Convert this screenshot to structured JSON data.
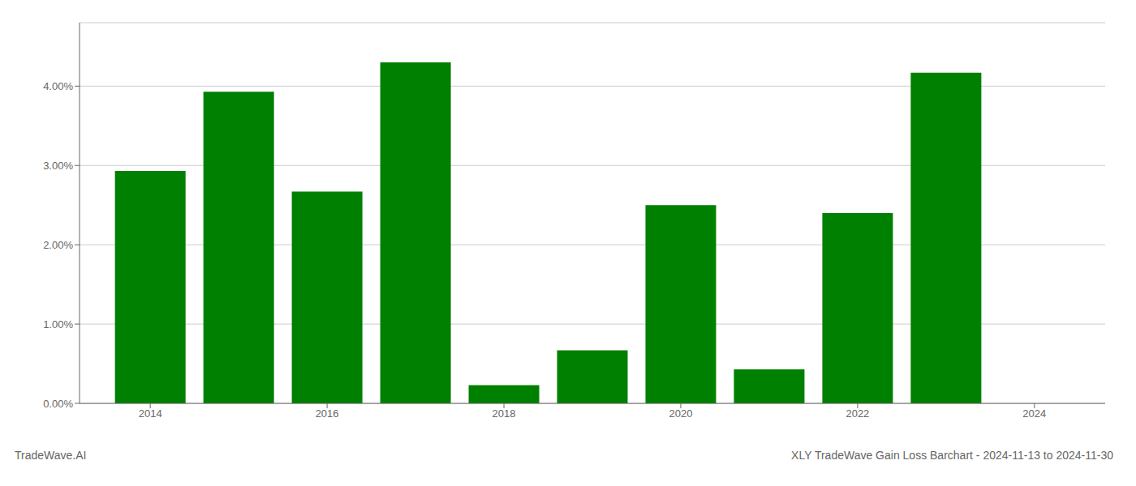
{
  "chart_data": {
    "type": "bar",
    "title": "XLY TradeWave Gain Loss Barchart - 2024-11-13 to 2024-11-30",
    "annotations": [
      "TradeWave.AI"
    ],
    "x": [
      2014,
      2015,
      2016,
      2017,
      2018,
      2019,
      2020,
      2021,
      2022,
      2023,
      2024
    ],
    "values": [
      0.0293,
      0.0393,
      0.0267,
      0.043,
      0.0023,
      0.0067,
      0.025,
      0.0043,
      0.024,
      0.0417,
      0.0
    ],
    "color": "#008000",
    "xlim": [
      2013.2,
      2024.8
    ],
    "xticks": [
      2014,
      2016,
      2018,
      2020,
      2022,
      2024
    ],
    "ylim": [
      0,
      0.048
    ],
    "yticks": [
      {
        "value": 0.0,
        "label": "0.00%"
      },
      {
        "value": 0.01,
        "label": "1.00%"
      },
      {
        "value": 0.02,
        "label": "2.00%"
      },
      {
        "value": 0.03,
        "label": "3.00%"
      },
      {
        "value": 0.04,
        "label": "4.00%"
      }
    ],
    "grid": true
  }
}
